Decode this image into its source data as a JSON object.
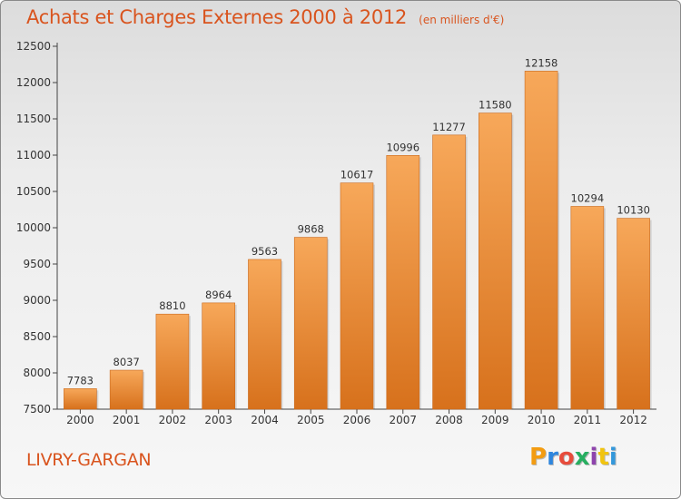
{
  "header": {
    "title": "Achats et Charges Externes 2000 à 2012",
    "subtitle": "(en milliers d'€)"
  },
  "footer": {
    "location": "LIVRY-GARGAN",
    "brand_letters": [
      "P",
      "r",
      "o",
      "x",
      "i",
      "t",
      "i"
    ],
    "brand_colors": [
      "#f39c12",
      "#2e86de",
      "#e74c3c",
      "#27ae60",
      "#8e44ad",
      "#f1c40f",
      "#3498db"
    ]
  },
  "colors": {
    "bar_top": "#f7a85a",
    "bar_bottom": "#d7711c",
    "title": "#d9541e",
    "axis": "#333333"
  },
  "chart_data": {
    "type": "bar",
    "categories": [
      "2000",
      "2001",
      "2002",
      "2003",
      "2004",
      "2005",
      "2006",
      "2007",
      "2008",
      "2009",
      "2010",
      "2011",
      "2012"
    ],
    "values": [
      7783,
      8037,
      8810,
      8964,
      9563,
      9868,
      10617,
      10996,
      11277,
      11580,
      12158,
      10294,
      10130
    ],
    "ylim": [
      7500,
      12500
    ],
    "yticks": [
      7500,
      8000,
      8500,
      9000,
      9500,
      10000,
      10500,
      11000,
      11500,
      12000,
      12500
    ],
    "grid": false,
    "data_labels": true
  }
}
